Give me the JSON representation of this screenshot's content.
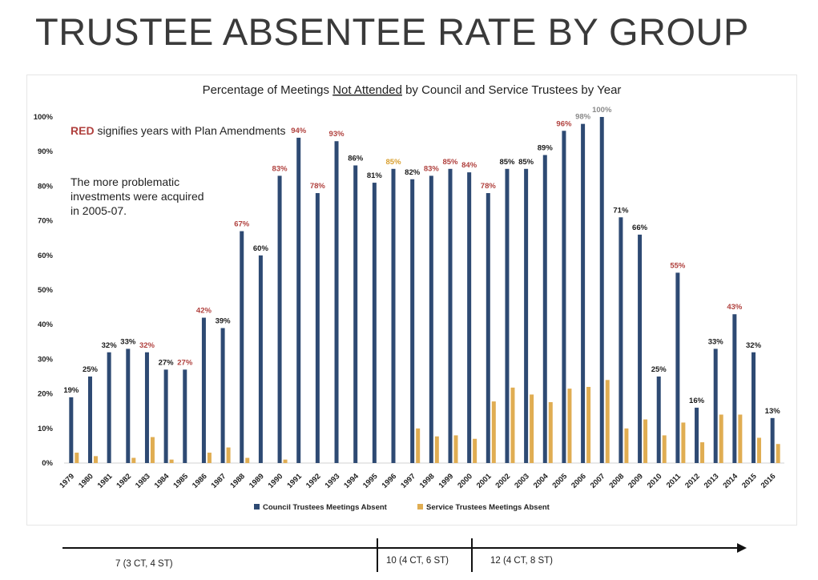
{
  "slide": {
    "title": "TRUSTEE ABSENTEE RATE BY GROUP"
  },
  "notes": {
    "red_word": "RED",
    "red_rest": " signifies years with Plan Amendments",
    "investments": "The more problematic investments were acquired in 2005-07."
  },
  "colors": {
    "council_bar": "#2e4a73",
    "service_bar": "#e0ad52",
    "label_red": "#b0413e",
    "label_gold": "#d9a030",
    "label_gray": "#8a8a8a",
    "label_black": "#1a1a1a"
  },
  "chart_data": {
    "type": "bar",
    "title_parts": [
      "Percentage of Meetings ",
      "Not Attended",
      " by Council and Service Trustees by Year"
    ],
    "title_underline_index": 1,
    "categories": [
      "1979",
      "1980",
      "1981",
      "1982",
      "1983",
      "1984",
      "1985",
      "1986",
      "1987",
      "1988",
      "1989",
      "1990",
      "1991",
      "1992",
      "1993",
      "1994",
      "1995",
      "1996",
      "1997",
      "1998",
      "1999",
      "2000",
      "2001",
      "2002",
      "2003",
      "2004",
      "2005",
      "2006",
      "2007",
      "2008",
      "2009",
      "2010",
      "2011",
      "2012",
      "2013",
      "2014",
      "2015",
      "2016"
    ],
    "series": [
      {
        "name": "Council Trustees Meetings Absent",
        "values": [
          19,
          25,
          32,
          33,
          32,
          27,
          27,
          42,
          39,
          67,
          60,
          83,
          94,
          78,
          93,
          86,
          81,
          85,
          82,
          83,
          85,
          84,
          78,
          85,
          85,
          89,
          96,
          98,
          100,
          71,
          66,
          25,
          55,
          16,
          33,
          43,
          32,
          13
        ]
      },
      {
        "name": "Service Trustees Meetings Absent",
        "values": [
          3,
          2,
          0,
          1.5,
          7.5,
          1,
          0,
          3,
          4.5,
          1.5,
          0,
          1,
          0,
          0,
          0,
          0,
          0,
          0,
          10,
          7.7,
          8,
          7,
          17.8,
          21.8,
          19.8,
          17.6,
          21.5,
          22,
          24,
          10,
          12.6,
          8,
          11.7,
          6,
          14,
          14,
          7.3,
          5.5
        ]
      }
    ],
    "data_labels": [
      "19%",
      "25%",
      "32%",
      "33%",
      "32%",
      "27%",
      "27%",
      "42%",
      "39%",
      "67%",
      "60%",
      "83%",
      "94%",
      "78%",
      "93%",
      "86%",
      "81%",
      "85%",
      "82%",
      "83%",
      "85%",
      "84%",
      "78%",
      "85%",
      "85%",
      "89%",
      "96%",
      "98%",
      "100%",
      "71%",
      "66%",
      "25%",
      "55%",
      "16%",
      "33%",
      "43%",
      "32%",
      "13%"
    ],
    "label_colors": [
      "black",
      "black",
      "black",
      "black",
      "red",
      "black",
      "red",
      "red",
      "black",
      "red",
      "black",
      "red",
      "red",
      "red",
      "red",
      "black",
      "black",
      "gold",
      "black",
      "red",
      "red",
      "red",
      "red",
      "black",
      "black",
      "black",
      "red",
      "gray",
      "gray",
      "black",
      "black",
      "black",
      "red",
      "black",
      "black",
      "red",
      "black",
      "black"
    ],
    "y_ticks": [
      "0%",
      "10%",
      "20%",
      "30%",
      "40%",
      "50%",
      "60%",
      "70%",
      "80%",
      "90%",
      "100%"
    ],
    "ylim": [
      0,
      100
    ],
    "grid": false,
    "legend_position": "bottom-center"
  },
  "timeline": {
    "periods": [
      "7 (3 CT, 4 ST)",
      "10 (4 CT, 6 ST)",
      "12 (4 CT, 8 ST)"
    ]
  }
}
